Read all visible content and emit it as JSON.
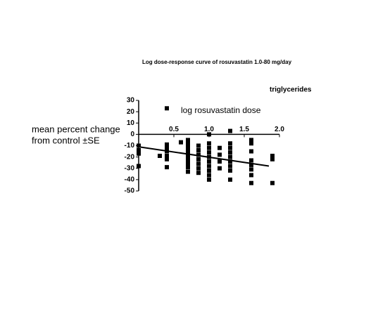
{
  "chart_data": {
    "type": "scatter",
    "title": "Log dose-response curve of rosuvastatin 1.0-80 mg/day",
    "annotation": "triglycerides",
    "x_label": "log rosuvastatin dose",
    "y_label": [
      "mean percent change",
      "from control ±SE"
    ],
    "xlim": [
      0,
      2.0
    ],
    "xticks": [
      0.5,
      {
        "value": 1,
        "label": "1.0"
      },
      1.5,
      {
        "value": 2,
        "label": "2.0"
      }
    ],
    "ylim": [
      -50,
      30
    ],
    "yticks": [
      30,
      20,
      10,
      0,
      -10,
      -20,
      -30,
      -40,
      -50
    ],
    "color": "#000000",
    "x": [
      0,
      0,
      0,
      0,
      0.3,
      0.4,
      0.4,
      0.4,
      0.4,
      0.4,
      0.4,
      0.4,
      0.6,
      0.7,
      0.7,
      0.7,
      0.7,
      0.7,
      0.7,
      0.7,
      0.7,
      0.7,
      0.7,
      0.85,
      0.85,
      0.85,
      0.85,
      0.85,
      0.85,
      0.85,
      1,
      1,
      1,
      1,
      1,
      1,
      1,
      1,
      1,
      1,
      1.15,
      1.15,
      1.15,
      1.15,
      1.3,
      1.3,
      1.3,
      1.3,
      1.3,
      1.3,
      1.3,
      1.3,
      1.3,
      1.6,
      1.6,
      1.6,
      1.6,
      1.6,
      1.6,
      1.6,
      1.6,
      1.9,
      1.9,
      1.9
    ],
    "y": [
      -10,
      -14,
      -17,
      -28,
      -19,
      23,
      -9,
      -12,
      -15,
      -19,
      -22,
      -29,
      -7,
      -5,
      -8,
      -11,
      -14,
      -17,
      -20,
      -23,
      -26,
      -29,
      -33,
      -10,
      -14,
      -18,
      -22,
      -26,
      -30,
      -34,
      0,
      -8,
      -12,
      -16,
      -20,
      -24,
      -28,
      -32,
      -36,
      -40,
      -12,
      -18,
      -24,
      -30,
      3,
      -8,
      -12,
      -16,
      -20,
      -24,
      -28,
      -32,
      -40,
      -5,
      -8,
      -15,
      -23,
      -27,
      -31,
      -36,
      -43,
      -19,
      -22,
      -43
    ],
    "trend_line": {
      "x": [
        0,
        1.85
      ],
      "y": [
        -11,
        -28
      ]
    }
  }
}
